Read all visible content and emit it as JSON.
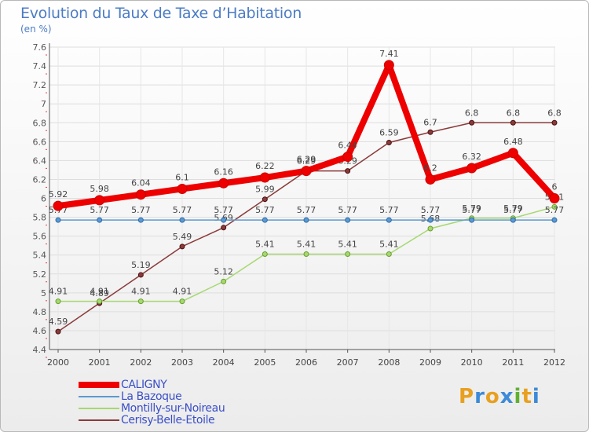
{
  "header": {
    "title": "Evolution du Taux de Taxe d’Habitation",
    "subtitle": "(en %)"
  },
  "logo": {
    "letters": [
      "P",
      "r",
      "o",
      "x",
      "i",
      "t",
      "i"
    ],
    "colors": [
      "#e8a020",
      "#3c8ad8",
      "#e8a020",
      "#3c8ad8",
      "#60b030",
      "#e8a020",
      "#3c8ad8"
    ]
  },
  "chart_data": {
    "type": "line",
    "categories": [
      "2000",
      "2001",
      "2002",
      "2003",
      "2004",
      "2005",
      "2006",
      "2007",
      "2008",
      "2009",
      "2010",
      "2011",
      "2012"
    ],
    "ylim": [
      4.4,
      7.6
    ],
    "yticks": [
      "4.4",
      "4.6",
      "4.8",
      "5",
      "5.2",
      "5.4",
      "5.6",
      "5.8",
      "6",
      "6.2",
      "6.4",
      "6.6",
      "6.8",
      "7",
      "7.2",
      "7.4",
      "7.6"
    ],
    "grid": true,
    "legend_position": "bottom-left",
    "series": [
      {
        "name": "CALIGNY",
        "color": "#ee0000",
        "values": [
          5.92,
          5.98,
          6.04,
          6.1,
          6.16,
          6.22,
          6.29,
          6.44,
          7.41,
          6.2,
          6.32,
          6.48,
          6.0
        ],
        "labels": [
          "5.92",
          "5.98",
          "6.04",
          "6.1",
          "6.16",
          "6.22",
          "6.29",
          "6.44",
          "7.41",
          "6.2",
          "6.32",
          "6.48",
          "6"
        ]
      },
      {
        "name": "La Bazoque",
        "color": "#5b9ad0",
        "values": [
          5.77,
          5.77,
          5.77,
          5.77,
          5.77,
          5.77,
          5.77,
          5.77,
          5.77,
          5.77,
          5.77,
          5.77,
          5.77
        ],
        "labels": [
          "5.77",
          "5.77",
          "5.77",
          "5.77",
          "5.77",
          "5.77",
          "5.77",
          "5.77",
          "5.77",
          "5.77",
          "5.77",
          "5.77",
          "5.77"
        ]
      },
      {
        "name": "Montilly-sur-Noireau",
        "color": "#a6d870",
        "values": [
          4.91,
          4.91,
          4.91,
          4.91,
          5.12,
          5.41,
          5.41,
          5.41,
          5.41,
          5.68,
          5.79,
          5.79,
          5.91
        ],
        "labels": [
          "4.91",
          "4.91",
          "4.91",
          "4.91",
          "5.12",
          "5.41",
          "5.41",
          "5.41",
          "5.41",
          "5.68",
          "5.79",
          "5.79",
          "5.91"
        ]
      },
      {
        "name": "Cerisy-Belle-Etoile",
        "color": "#8b3a3a",
        "values": [
          4.59,
          4.89,
          5.19,
          5.49,
          5.69,
          5.99,
          6.29,
          6.29,
          6.59,
          6.7,
          6.8,
          6.8,
          6.8
        ],
        "labels": [
          "4.59",
          "4.89",
          "5.19",
          "5.49",
          "5.69",
          "5.99",
          "6.29",
          "6.29",
          "6.59",
          "6.7",
          "6.8",
          "6.8",
          "6.8"
        ]
      }
    ]
  }
}
